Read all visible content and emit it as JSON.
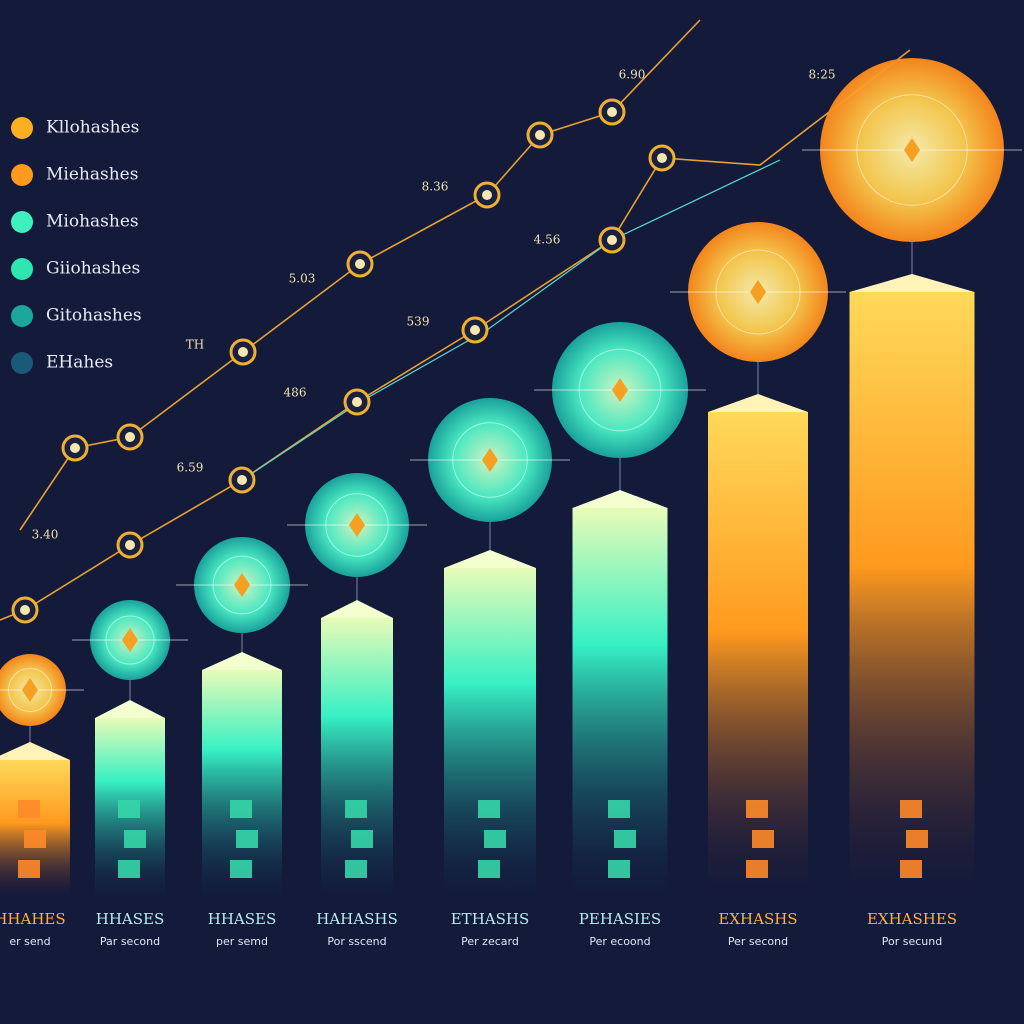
{
  "legend": [
    {
      "label": "Kllohashes",
      "color": "#ffb020"
    },
    {
      "label": "Miehashes",
      "color": "#ff9a1e"
    },
    {
      "label": "Miohashes",
      "color": "#3ef0c0"
    },
    {
      "label": "Giiohashes",
      "color": "#2ee6b0"
    },
    {
      "label": "Gitohashes",
      "color": "#1ba89a"
    },
    {
      "label": "EHahes",
      "color": "#1a5a78"
    }
  ],
  "columns": [
    {
      "label": "HHAHES",
      "sublabel": "er send"
    },
    {
      "label": "HHASES",
      "sublabel": "Par second"
    },
    {
      "label": "HHASES",
      "sublabel": "per semd"
    },
    {
      "label": "HAHASHS",
      "sublabel": "Por sscend"
    },
    {
      "label": "ETHASHS",
      "sublabel": "Per zecard"
    },
    {
      "label": "PEHASIES",
      "sublabel": "Per ecoond"
    },
    {
      "label": "EXHASHS",
      "sublabel": "Per second"
    },
    {
      "label": "EXHASHES",
      "sublabel": "Por secund"
    }
  ],
  "annotations": [
    "6.90",
    "8:25",
    "8.36",
    "5.03",
    "4.56",
    "539",
    "486",
    "6.59",
    "3.40",
    "TH"
  ]
}
